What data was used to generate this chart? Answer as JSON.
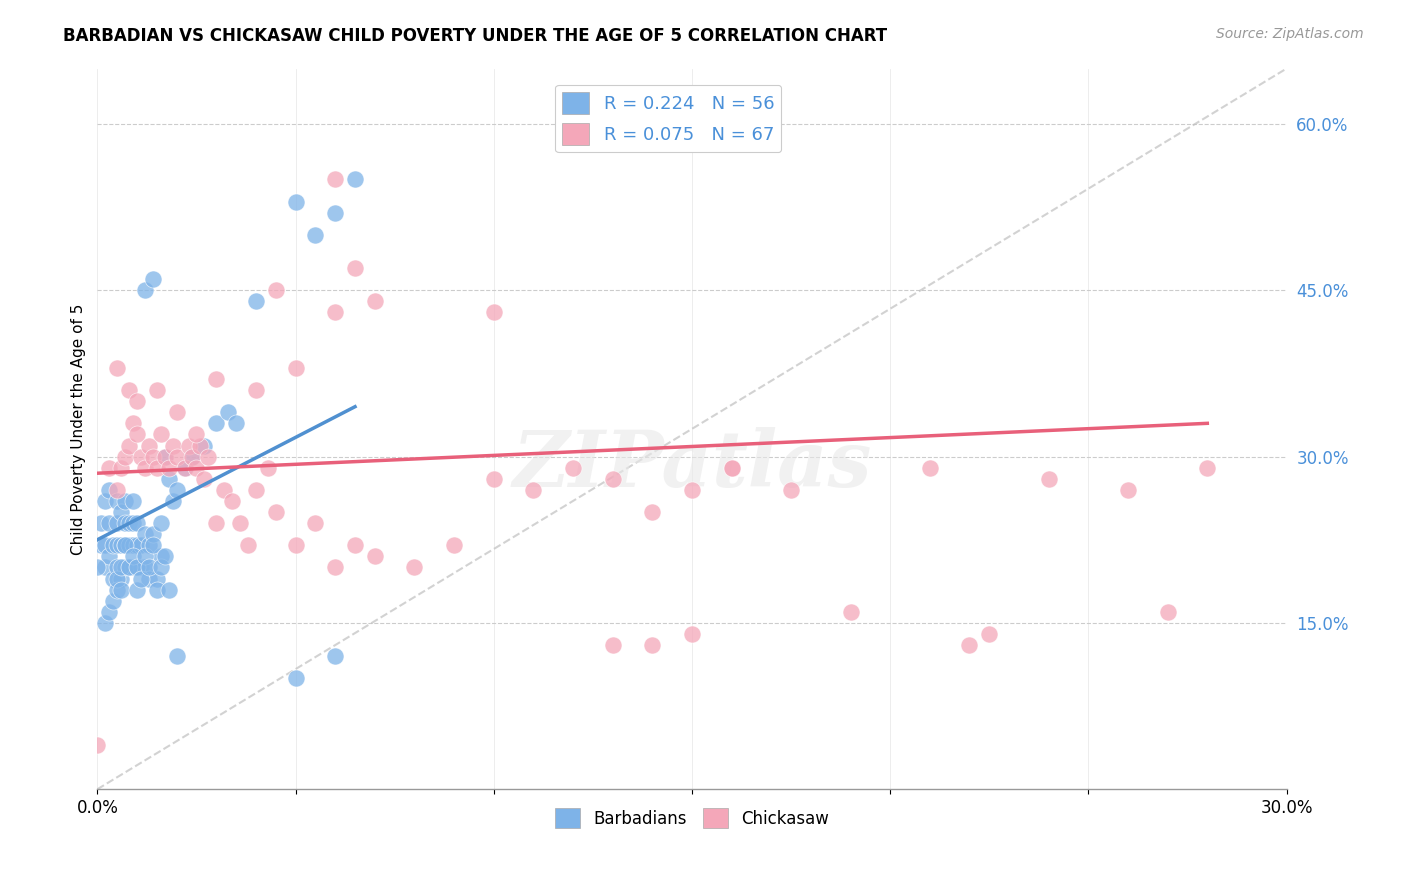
{
  "title": "BARBADIAN VS CHICKASAW CHILD POVERTY UNDER THE AGE OF 5 CORRELATION CHART",
  "source": "Source: ZipAtlas.com",
  "ylabel": "Child Poverty Under the Age of 5",
  "xlim": [
    0.0,
    0.3
  ],
  "ylim": [
    0.0,
    0.65
  ],
  "xticks": [
    0.0,
    0.05,
    0.1,
    0.15,
    0.2,
    0.25,
    0.3
  ],
  "xtick_labels": [
    "0.0%",
    "",
    "",
    "",
    "",
    "",
    "30.0%"
  ],
  "yticks_right": [
    0.15,
    0.3,
    0.45,
    0.6
  ],
  "ytick_right_labels": [
    "15.0%",
    "30.0%",
    "45.0%",
    "60.0%"
  ],
  "barbadian_color": "#7eb3e8",
  "chickasaw_color": "#f4a7b9",
  "barbadian_trend_color": "#5090d0",
  "chickasaw_trend_color": "#e8607a",
  "barbadian_R": 0.224,
  "barbadian_N": 56,
  "chickasaw_R": 0.075,
  "chickasaw_N": 67,
  "watermark": "ZIPatlas",
  "background_color": "#ffffff",
  "grid_color": "#cccccc",
  "diag_color": "#c0c0c0",
  "barbadian_x": [
    0.001,
    0.001,
    0.002,
    0.002,
    0.002,
    0.003,
    0.003,
    0.003,
    0.004,
    0.004,
    0.005,
    0.005,
    0.005,
    0.005,
    0.006,
    0.006,
    0.006,
    0.007,
    0.007,
    0.007,
    0.007,
    0.008,
    0.008,
    0.008,
    0.009,
    0.009,
    0.009,
    0.009,
    0.01,
    0.01,
    0.01,
    0.011,
    0.011,
    0.012,
    0.012,
    0.013,
    0.013,
    0.014,
    0.015,
    0.016,
    0.016,
    0.017,
    0.018,
    0.019,
    0.02,
    0.022,
    0.024,
    0.027,
    0.03,
    0.033,
    0.035,
    0.04,
    0.05,
    0.055,
    0.06,
    0.065
  ],
  "barbadian_y": [
    0.22,
    0.24,
    0.2,
    0.22,
    0.26,
    0.21,
    0.24,
    0.27,
    0.19,
    0.22,
    0.2,
    0.22,
    0.24,
    0.26,
    0.19,
    0.22,
    0.25,
    0.2,
    0.22,
    0.24,
    0.26,
    0.2,
    0.22,
    0.24,
    0.2,
    0.22,
    0.24,
    0.26,
    0.2,
    0.22,
    0.24,
    0.2,
    0.22,
    0.2,
    0.23,
    0.19,
    0.22,
    0.23,
    0.19,
    0.21,
    0.24,
    0.3,
    0.28,
    0.26,
    0.27,
    0.29,
    0.3,
    0.31,
    0.33,
    0.34,
    0.33,
    0.44,
    0.53,
    0.5,
    0.52,
    0.55
  ],
  "barbadian_extra_x": [
    0.0,
    0.002,
    0.003,
    0.004,
    0.005,
    0.005,
    0.006,
    0.006,
    0.007,
    0.008,
    0.009,
    0.01,
    0.01,
    0.011,
    0.012,
    0.013,
    0.014,
    0.015,
    0.016,
    0.017,
    0.018,
    0.02,
    0.05,
    0.06,
    0.012,
    0.014
  ],
  "barbadian_extra_y": [
    0.2,
    0.15,
    0.16,
    0.17,
    0.18,
    0.19,
    0.18,
    0.2,
    0.22,
    0.2,
    0.21,
    0.18,
    0.2,
    0.19,
    0.21,
    0.2,
    0.22,
    0.18,
    0.2,
    0.21,
    0.18,
    0.12,
    0.1,
    0.12,
    0.45,
    0.46
  ],
  "chickasaw_x": [
    0.0,
    0.003,
    0.005,
    0.006,
    0.007,
    0.008,
    0.009,
    0.01,
    0.011,
    0.012,
    0.013,
    0.014,
    0.015,
    0.016,
    0.017,
    0.018,
    0.019,
    0.02,
    0.022,
    0.023,
    0.024,
    0.025,
    0.026,
    0.027,
    0.028,
    0.03,
    0.032,
    0.034,
    0.036,
    0.038,
    0.04,
    0.043,
    0.045,
    0.05,
    0.055,
    0.06,
    0.065,
    0.07,
    0.08,
    0.09,
    0.1,
    0.11,
    0.12,
    0.13,
    0.14,
    0.15,
    0.16,
    0.175,
    0.19,
    0.21,
    0.225,
    0.24,
    0.26,
    0.27,
    0.28,
    0.005,
    0.008,
    0.01,
    0.015,
    0.02,
    0.025,
    0.03,
    0.06,
    0.07,
    0.15,
    0.16,
    0.1
  ],
  "chickasaw_y": [
    0.04,
    0.29,
    0.27,
    0.29,
    0.3,
    0.31,
    0.33,
    0.32,
    0.3,
    0.29,
    0.31,
    0.3,
    0.29,
    0.32,
    0.3,
    0.29,
    0.31,
    0.3,
    0.29,
    0.31,
    0.3,
    0.29,
    0.31,
    0.28,
    0.3,
    0.24,
    0.27,
    0.26,
    0.24,
    0.22,
    0.27,
    0.29,
    0.25,
    0.22,
    0.24,
    0.2,
    0.22,
    0.21,
    0.2,
    0.22,
    0.28,
    0.27,
    0.29,
    0.28,
    0.25,
    0.27,
    0.29,
    0.27,
    0.16,
    0.29,
    0.14,
    0.28,
    0.27,
    0.16,
    0.29,
    0.38,
    0.36,
    0.35,
    0.36,
    0.34,
    0.32,
    0.37,
    0.43,
    0.44,
    0.14,
    0.29,
    0.43
  ],
  "chickasaw_extra_x": [
    0.04,
    0.045,
    0.05,
    0.06,
    0.065,
    0.13,
    0.14,
    0.22
  ],
  "chickasaw_extra_y": [
    0.36,
    0.45,
    0.38,
    0.55,
    0.47,
    0.13,
    0.13,
    0.13
  ],
  "barb_trend_x": [
    0.0,
    0.065
  ],
  "barb_trend_y": [
    0.225,
    0.345
  ],
  "chick_trend_x": [
    0.0,
    0.28
  ],
  "chick_trend_y": [
    0.285,
    0.33
  ]
}
